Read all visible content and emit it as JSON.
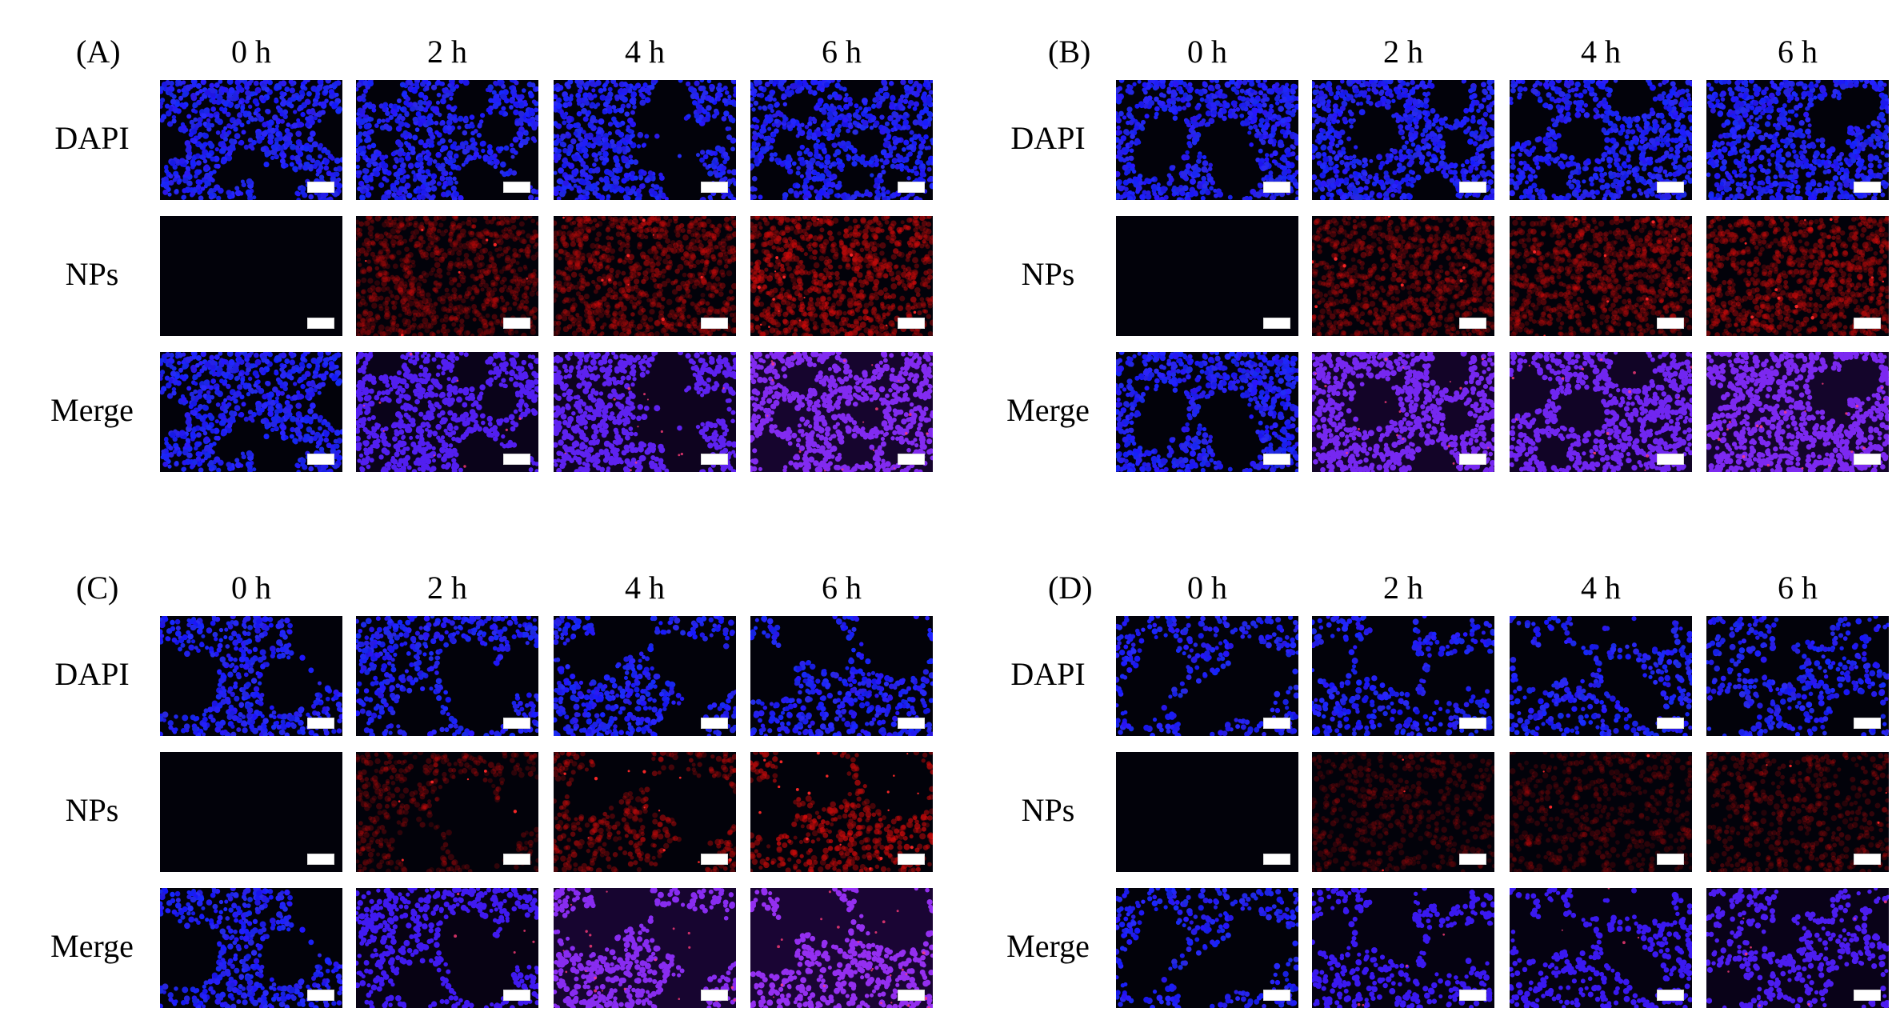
{
  "figure": {
    "time_points": [
      "0 h",
      "2 h",
      "4 h",
      "6 h"
    ],
    "channels": [
      "DAPI",
      "NPs",
      "Merge"
    ],
    "panels": [
      {
        "label": "(A)",
        "nps_intensity": [
          0.0,
          0.35,
          0.5,
          0.75
        ],
        "merge_purple": [
          0.0,
          0.35,
          0.45,
          0.75
        ],
        "cell_pattern": "dense-holes"
      },
      {
        "label": "(B)",
        "nps_intensity": [
          0.0,
          0.4,
          0.45,
          0.55
        ],
        "merge_purple": [
          0.0,
          0.65,
          0.6,
          0.7
        ],
        "cell_pattern": "dense"
      },
      {
        "label": "(C)",
        "nps_intensity": [
          0.0,
          0.3,
          0.6,
          0.95
        ],
        "merge_purple": [
          0.0,
          0.2,
          0.8,
          0.9
        ],
        "cell_pattern": "clusters"
      },
      {
        "label": "(D)",
        "nps_intensity": [
          0.0,
          0.15,
          0.15,
          0.25
        ],
        "merge_purple": [
          0.0,
          0.15,
          0.15,
          0.3
        ],
        "cell_pattern": "sparse"
      }
    ],
    "colors": {
      "dapi": "#1010f0",
      "nps": "#d01010",
      "merge_purple": "#7a20e0",
      "background": "#02020a",
      "scale_bar": "#ffffff"
    }
  }
}
